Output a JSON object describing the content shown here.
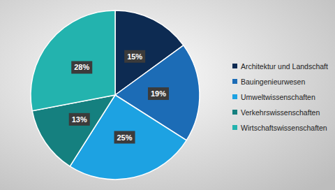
{
  "chart_data": {
    "type": "pie",
    "categories": [
      "Architektur und Landschaft",
      "Bauingenieurwesen",
      "Umweltwissenschaften",
      "Verkehrswissenschaften",
      "Wirtschaftswissenschaften"
    ],
    "values": [
      15,
      19,
      25,
      13,
      28
    ],
    "value_labels": [
      "15%",
      "19%",
      "25%",
      "13%",
      "28%"
    ],
    "colors": [
      "#0d2b52",
      "#1c6cb6",
      "#1da2e2",
      "#15807f",
      "#23b3ae"
    ],
    "data_labels": true,
    "legend": "right"
  }
}
